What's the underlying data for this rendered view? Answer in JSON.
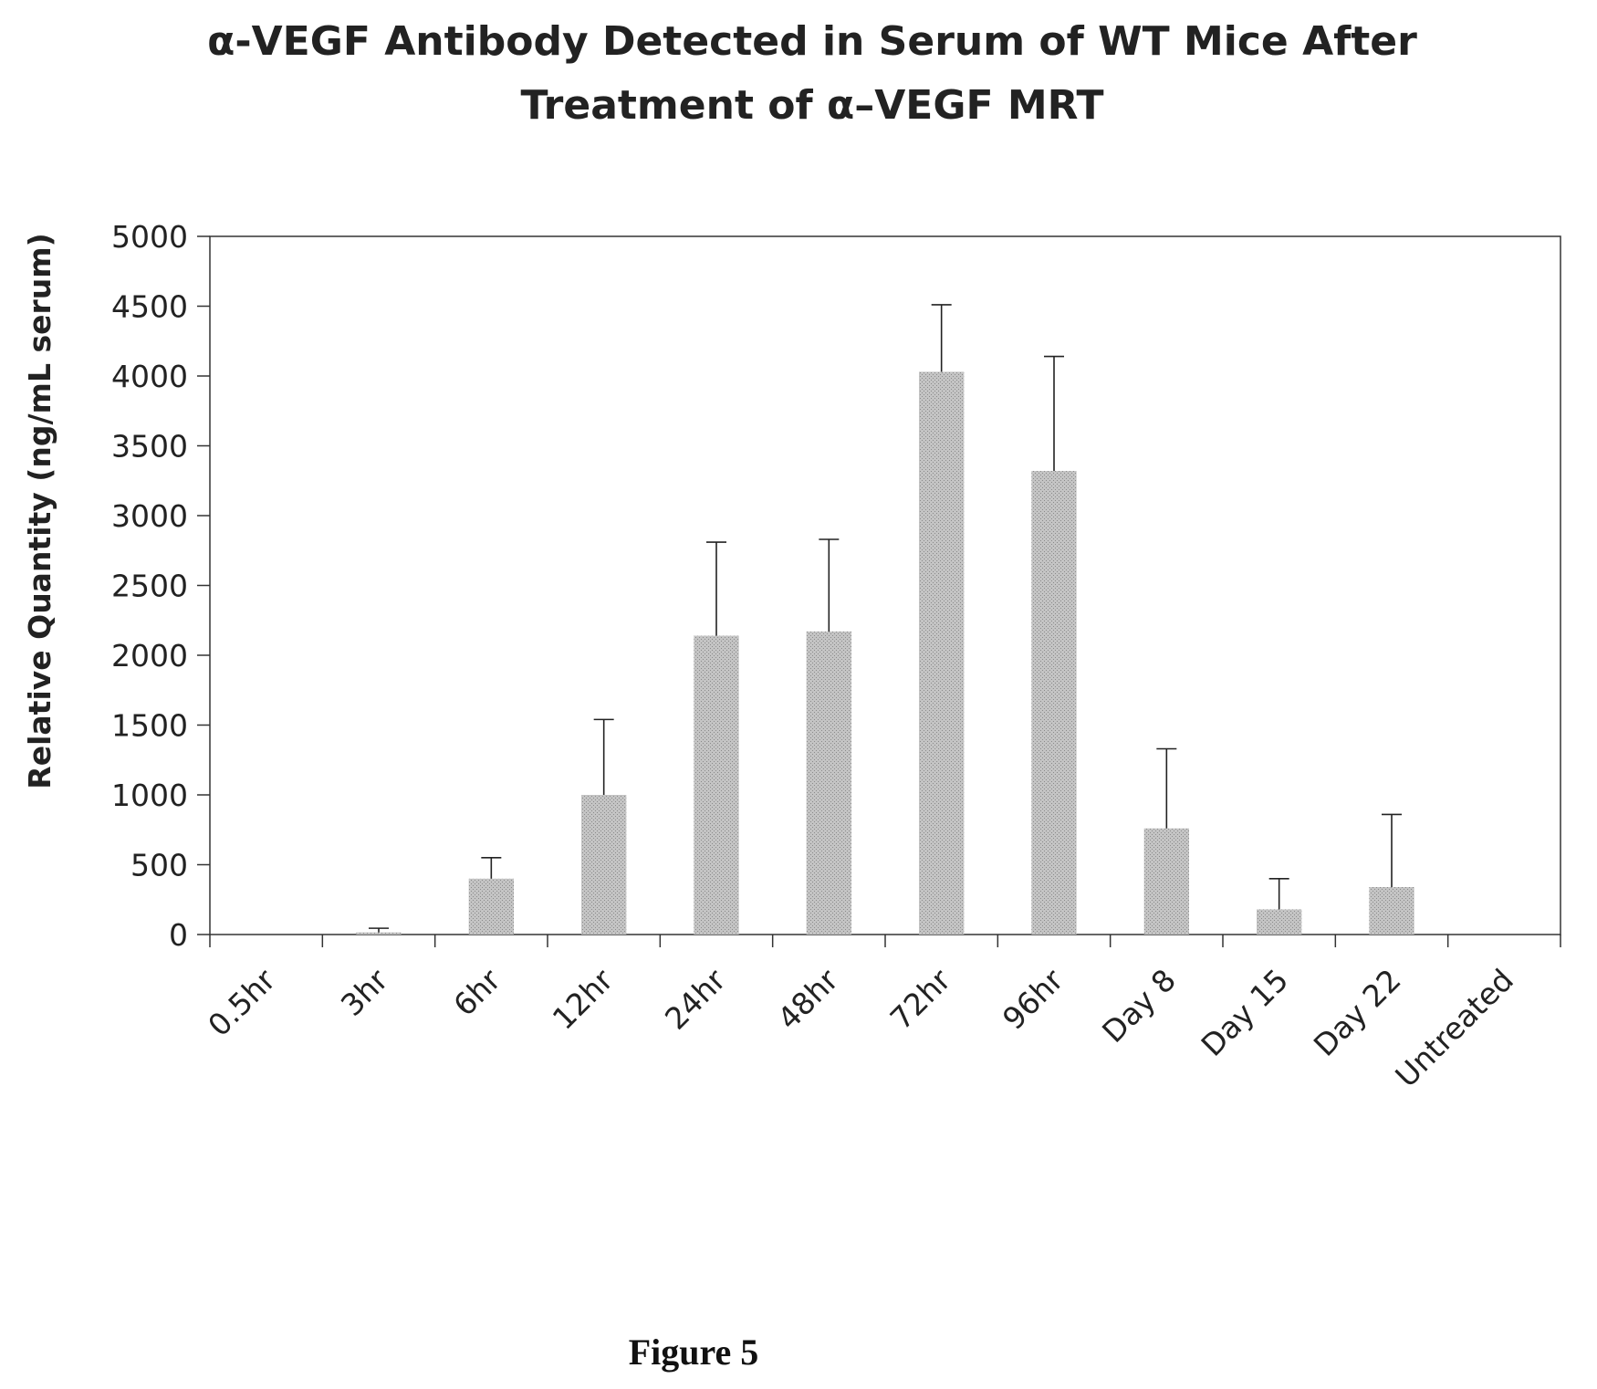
{
  "chart_data": {
    "type": "bar",
    "title_line1": "α-VEGF Antibody Detected in Serum of WT Mice After",
    "title_line2": "Treatment of α–VEGF MRT",
    "ylabel": "Relative Quantity (ng/mL serum)",
    "xlabel": "",
    "ylim": [
      0,
      5000
    ],
    "yticks": [
      "0",
      "500",
      "1000",
      "1500",
      "2000",
      "2500",
      "3000",
      "3500",
      "4000",
      "4500",
      "5000"
    ],
    "categories": [
      "0.5hr",
      "3hr",
      "6hr",
      "12hr",
      "24hr",
      "48hr",
      "72hr",
      "96hr",
      "Day 8",
      "Day 15",
      "Day 22",
      "Untreated"
    ],
    "values": [
      0,
      15,
      400,
      1000,
      2140,
      2170,
      4030,
      3320,
      760,
      180,
      340,
      0
    ],
    "error_upper": [
      0,
      30,
      150,
      540,
      670,
      660,
      480,
      820,
      570,
      220,
      520,
      0
    ],
    "bar_color": "#b3b3b3",
    "grid": false,
    "legend": "none"
  },
  "caption": "Figure 5"
}
